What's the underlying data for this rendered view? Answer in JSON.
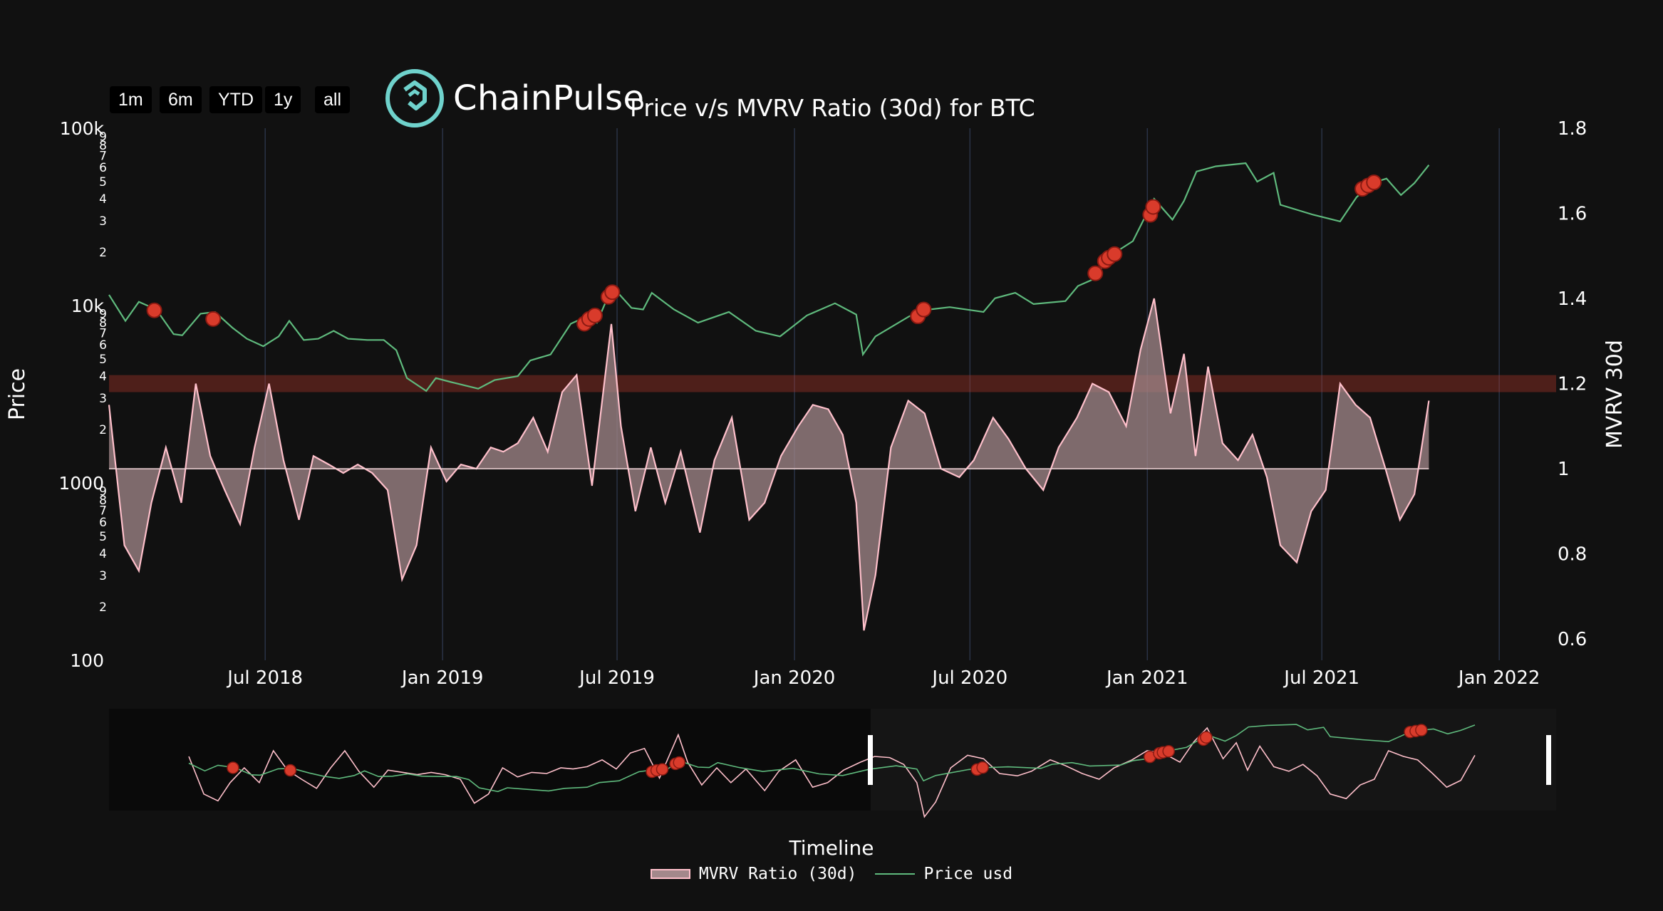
{
  "toolbar": {
    "range_buttons": [
      {
        "label": "1m"
      },
      {
        "label": "6m"
      },
      {
        "label": "YTD"
      },
      {
        "label": "1y"
      },
      {
        "label": "all"
      }
    ]
  },
  "brand": {
    "name": "ChainPulse"
  },
  "colors": {
    "background": "#111111",
    "price_line": "#5fba7d",
    "mvrv_line": "#ffc0cb",
    "mvrv_fill": "#a3888b",
    "highlight_band": "#c0392b",
    "marker": "#d93b2b",
    "grid": "#2a3346"
  },
  "chart_data": {
    "type": "line",
    "title": "Price v/s MVRV Ratio (30d) for BTC",
    "xlabel": "Timeline",
    "ylabel": "Price",
    "y2label": "MVRV 30d",
    "y_scale": "log",
    "ylim": [
      100,
      100000
    ],
    "y2lim": [
      0.55,
      1.8
    ],
    "xlim": [
      "2018-01-20",
      "2022-03-01"
    ],
    "x_ticks": [
      "Jul 2018",
      "Jan 2019",
      "Jul 2019",
      "Jan 2020",
      "Jul 2020",
      "Jan 2021",
      "Jul 2021",
      "Jan 2022"
    ],
    "x_tick_dates": [
      "2018-07-01",
      "2019-01-01",
      "2019-07-01",
      "2020-01-01",
      "2020-07-01",
      "2021-01-01",
      "2021-07-01",
      "2022-01-01"
    ],
    "y_ticks_major": [
      "100",
      "1000",
      "10k",
      "100k"
    ],
    "y_minor_labels": [
      "2",
      "3",
      "4",
      "5",
      "6",
      "7",
      "8",
      "9"
    ],
    "y2_ticks": [
      "0.6",
      "0.8",
      "1",
      "1.2",
      "1.4",
      "1.6",
      "1.8"
    ],
    "highlight_band": {
      "y2_from": 1.18,
      "y2_to": 1.22
    },
    "grid": "vertical",
    "legend_position": "bottom-center",
    "series": [
      {
        "name": "MVRV Ratio (30d)",
        "axis": "y2",
        "style": "area",
        "baseline": 1,
        "x": [
          "2018-01-20",
          "2018-02-05",
          "2018-02-20",
          "2018-03-05",
          "2018-03-20",
          "2018-04-05",
          "2018-04-20",
          "2018-05-05",
          "2018-05-20",
          "2018-06-05",
          "2018-06-20",
          "2018-07-05",
          "2018-07-20",
          "2018-08-05",
          "2018-08-20",
          "2018-09-05",
          "2018-09-20",
          "2018-10-05",
          "2018-10-20",
          "2018-11-05",
          "2018-11-20",
          "2018-12-05",
          "2018-12-20",
          "2019-01-05",
          "2019-01-20",
          "2019-02-05",
          "2019-02-20",
          "2019-03-05",
          "2019-03-20",
          "2019-04-05",
          "2019-04-20",
          "2019-05-05",
          "2019-05-20",
          "2019-06-05",
          "2019-06-25",
          "2019-07-05",
          "2019-07-20",
          "2019-08-05",
          "2019-08-20",
          "2019-09-05",
          "2019-09-25",
          "2019-10-10",
          "2019-10-28",
          "2019-11-15",
          "2019-12-01",
          "2019-12-18",
          "2020-01-05",
          "2020-01-20",
          "2020-02-05",
          "2020-02-20",
          "2020-03-05",
          "2020-03-13",
          "2020-03-25",
          "2020-04-10",
          "2020-04-28",
          "2020-05-15",
          "2020-06-01",
          "2020-06-20",
          "2020-07-05",
          "2020-07-25",
          "2020-08-10",
          "2020-08-28",
          "2020-09-15",
          "2020-10-01",
          "2020-10-20",
          "2020-11-05",
          "2020-11-22",
          "2020-12-10",
          "2020-12-25",
          "2021-01-08",
          "2021-01-25",
          "2021-02-08",
          "2021-02-20",
          "2021-03-05",
          "2021-03-20",
          "2021-04-05",
          "2021-04-20",
          "2021-05-05",
          "2021-05-19",
          "2021-06-05",
          "2021-06-20",
          "2021-07-05",
          "2021-07-20",
          "2021-08-05",
          "2021-08-20",
          "2021-09-05",
          "2021-09-20",
          "2021-10-05",
          "2021-10-20"
        ],
        "values": [
          1.15,
          0.82,
          0.76,
          0.92,
          1.05,
          0.92,
          1.2,
          1.03,
          0.95,
          0.87,
          1.05,
          1.2,
          1.02,
          0.88,
          1.03,
          1.01,
          0.99,
          1.01,
          0.99,
          0.95,
          0.74,
          0.82,
          1.05,
          0.97,
          1.01,
          1.0,
          1.05,
          1.04,
          1.06,
          1.12,
          1.04,
          1.18,
          1.22,
          0.96,
          1.34,
          1.1,
          0.9,
          1.05,
          0.92,
          1.04,
          0.85,
          1.02,
          1.12,
          0.88,
          0.92,
          1.03,
          1.1,
          1.15,
          1.14,
          1.08,
          0.92,
          0.62,
          0.75,
          1.05,
          1.16,
          1.13,
          1.0,
          0.98,
          1.02,
          1.12,
          1.07,
          1.0,
          0.95,
          1.05,
          1.12,
          1.2,
          1.18,
          1.1,
          1.28,
          1.4,
          1.13,
          1.27,
          1.03,
          1.24,
          1.06,
          1.02,
          1.08,
          0.98,
          0.82,
          0.78,
          0.9,
          0.95,
          1.2,
          1.15,
          1.12,
          1.0,
          0.88,
          0.94,
          1.16
        ]
      },
      {
        "name": "Price usd",
        "axis": "y",
        "style": "line",
        "x": [
          "2018-01-20",
          "2018-02-06",
          "2018-02-20",
          "2018-03-10",
          "2018-03-28",
          "2018-04-06",
          "2018-04-25",
          "2018-05-10",
          "2018-05-28",
          "2018-06-12",
          "2018-06-29",
          "2018-07-15",
          "2018-07-26",
          "2018-08-10",
          "2018-08-25",
          "2018-09-10",
          "2018-09-25",
          "2018-10-15",
          "2018-11-01",
          "2018-11-14",
          "2018-11-25",
          "2018-12-15",
          "2018-12-25",
          "2019-01-10",
          "2019-02-07",
          "2019-02-24",
          "2019-03-20",
          "2019-04-02",
          "2019-04-23",
          "2019-05-14",
          "2019-05-29",
          "2019-06-10",
          "2019-06-26",
          "2019-07-16",
          "2019-07-28",
          "2019-08-06",
          "2019-08-29",
          "2019-09-23",
          "2019-10-25",
          "2019-11-22",
          "2019-12-17",
          "2020-01-14",
          "2020-02-12",
          "2020-03-05",
          "2020-03-12",
          "2020-03-25",
          "2020-04-29",
          "2020-05-20",
          "2020-06-10",
          "2020-07-15",
          "2020-07-27",
          "2020-08-17",
          "2020-09-05",
          "2020-10-08",
          "2020-10-21",
          "2020-11-05",
          "2020-11-24",
          "2020-12-17",
          "2021-01-08",
          "2021-01-27",
          "2021-02-08",
          "2021-02-21",
          "2021-03-13",
          "2021-04-13",
          "2021-04-25",
          "2021-05-12",
          "2021-05-19",
          "2021-06-22",
          "2021-07-20",
          "2021-08-06",
          "2021-08-22",
          "2021-09-06",
          "2021-09-21",
          "2021-10-05",
          "2021-10-20"
        ],
        "values": [
          11500,
          8200,
          10500,
          9500,
          6900,
          6800,
          9000,
          9200,
          7500,
          6500,
          5900,
          6700,
          8200,
          6400,
          6500,
          7200,
          6500,
          6400,
          6400,
          5600,
          3900,
          3300,
          3900,
          3700,
          3400,
          3800,
          4000,
          4900,
          5300,
          7900,
          8600,
          8000,
          12800,
          9700,
          9500,
          11800,
          9500,
          8000,
          9200,
          7200,
          6700,
          8800,
          10300,
          8900,
          5300,
          6700,
          8700,
          9500,
          9800,
          9200,
          11000,
          11800,
          10200,
          10600,
          12900,
          14000,
          19200,
          23100,
          40000,
          30500,
          38900,
          57000,
          61000,
          63500,
          50000,
          56000,
          37000,
          32500,
          29800,
          40800,
          49000,
          52000,
          42000,
          49000,
          62000
        ]
      }
    ],
    "markers": [
      {
        "x": "2018-03-08",
        "y": 9400
      },
      {
        "x": "2018-05-08",
        "y": 8400
      },
      {
        "x": "2019-05-28",
        "y": 7900
      },
      {
        "x": "2019-06-02",
        "y": 8400
      },
      {
        "x": "2019-06-08",
        "y": 8800
      },
      {
        "x": "2019-06-22",
        "y": 11200
      },
      {
        "x": "2019-06-26",
        "y": 11900
      },
      {
        "x": "2020-05-08",
        "y": 8700
      },
      {
        "x": "2020-05-14",
        "y": 9500
      },
      {
        "x": "2020-11-08",
        "y": 15200
      },
      {
        "x": "2020-11-18",
        "y": 17800
      },
      {
        "x": "2020-11-22",
        "y": 18600
      },
      {
        "x": "2020-11-28",
        "y": 19500
      },
      {
        "x": "2021-01-04",
        "y": 32500
      },
      {
        "x": "2021-01-07",
        "y": 36000
      },
      {
        "x": "2021-08-12",
        "y": 45500
      },
      {
        "x": "2021-08-18",
        "y": 47500
      },
      {
        "x": "2021-08-24",
        "y": 49500
      }
    ]
  }
}
